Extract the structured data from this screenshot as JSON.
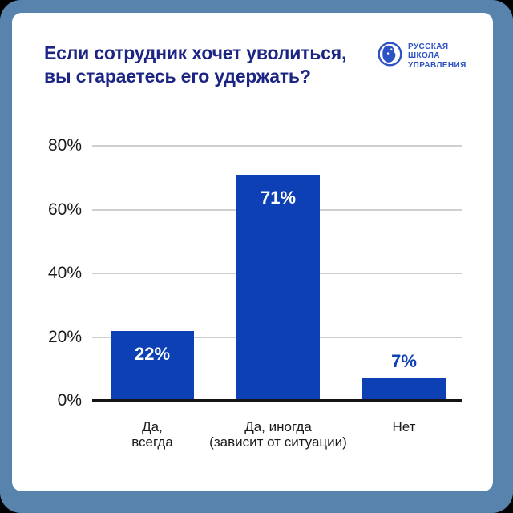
{
  "header": {
    "title_line1": "Если сотрудник хочет уволиться,",
    "title_line2": "вы стараетесь его удержать?"
  },
  "logo": {
    "icon": "globe-icon",
    "line1": "РУССКАЯ",
    "line2": "ШКОЛА",
    "line3": "УПРАВЛЕНИЯ"
  },
  "colors": {
    "frame": "#5783ad",
    "card_bg": "#ffffff",
    "title_text": "#1c2583",
    "bar": "#0d40b4",
    "logo_blue": "#2d52c4",
    "gridline": "#cfcfcf",
    "axis_line": "#141414",
    "tick_text": "#1a1a1a",
    "value_label_inside": "#ffffff",
    "value_label_above": "#0d40b4"
  },
  "chart_data": {
    "type": "bar",
    "title": "Если сотрудник хочет уволиться, вы стараетесь его удержать?",
    "categories": [
      [
        "Да,",
        "всегда"
      ],
      [
        "Да, иногда",
        "(зависит от ситуации)"
      ],
      [
        "Нет"
      ]
    ],
    "values": [
      22,
      71,
      7
    ],
    "value_labels": [
      "22%",
      "71%",
      "7%"
    ],
    "value_label_placement": [
      "inside",
      "inside",
      "above"
    ],
    "y_ticks": [
      {
        "value": 0,
        "label": "0%"
      },
      {
        "value": 20,
        "label": "20%"
      },
      {
        "value": 40,
        "label": "40%"
      },
      {
        "value": 60,
        "label": "60%"
      },
      {
        "value": 80,
        "label": "80%"
      }
    ],
    "ylim": [
      0,
      80
    ],
    "grid": true,
    "legend": false,
    "bar_color": "#0d40b4"
  }
}
